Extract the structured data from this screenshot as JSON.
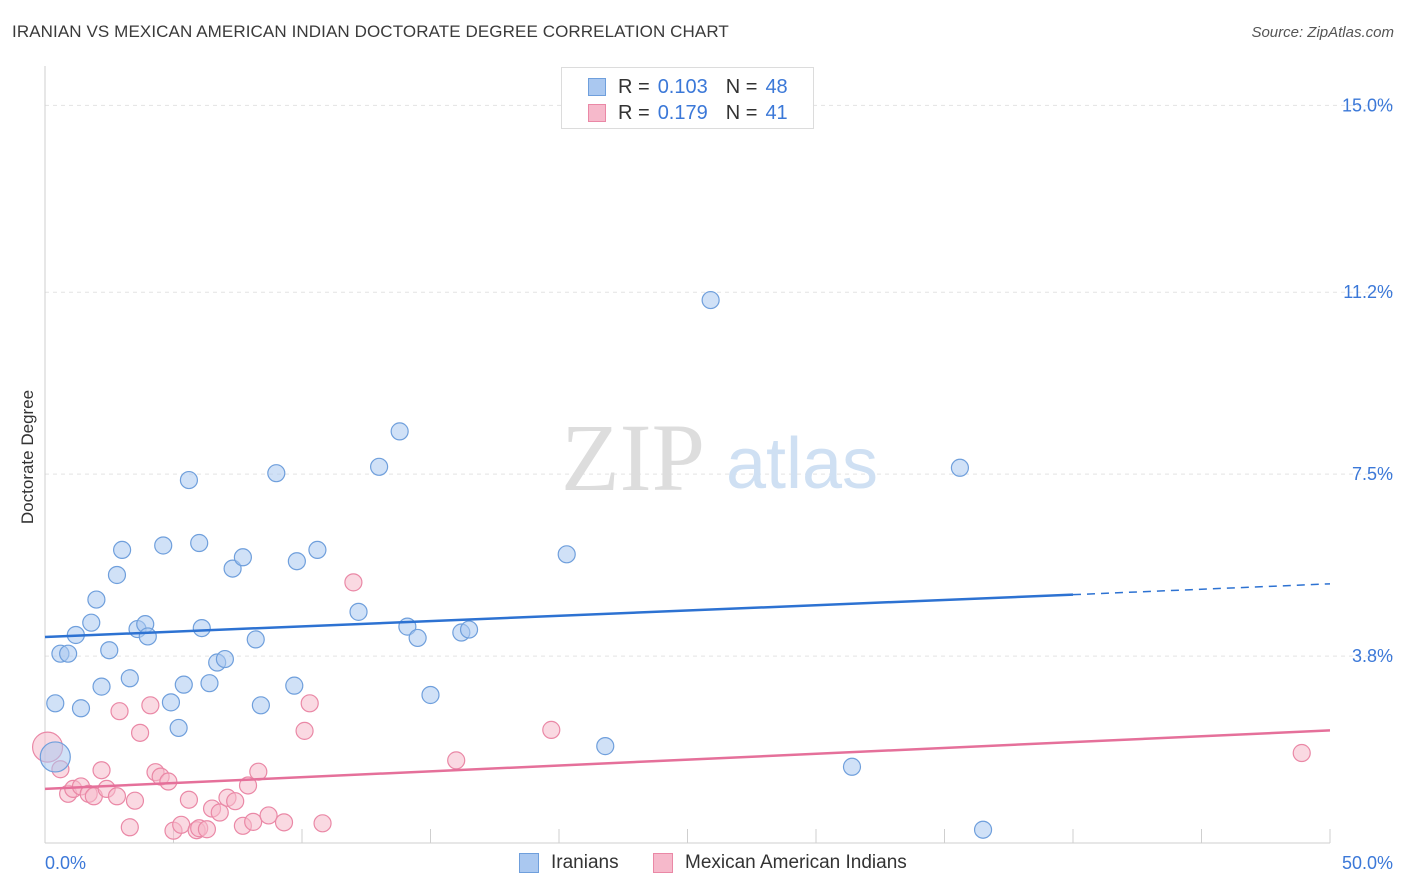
{
  "header": {
    "title": "IRANIAN VS MEXICAN AMERICAN INDIAN DOCTORATE DEGREE CORRELATION CHART",
    "source": "Source: ZipAtlas.com"
  },
  "watermark": {
    "zip": "ZIP",
    "atlas": "atlas"
  },
  "legend_top": [
    {
      "r_label": "R =",
      "r_value": "0.103",
      "n_label": "N =",
      "n_value": "48"
    },
    {
      "r_label": "R =",
      "r_value": "0.179",
      "n_label": "N =",
      "n_value": "41"
    }
  ],
  "legend_bottom": [
    {
      "label": "Iranians"
    },
    {
      "label": "Mexican American Indians"
    }
  ],
  "colors": {
    "iranian_fill": "#aac8f0",
    "iranian_stroke": "#6f9fdc",
    "iranian_line": "#2d72d2",
    "mexican_fill": "#f6b9cb",
    "mexican_stroke": "#ea88a6",
    "mexican_line": "#e5709a",
    "tick_text": "#3b78d8",
    "grid": "#e3e3e3"
  },
  "chart_data": {
    "type": "scatter",
    "title": "IRANIAN VS MEXICAN AMERICAN INDIAN DOCTORATE DEGREE CORRELATION CHART",
    "xlabel": "",
    "ylabel": "Doctorate Degree",
    "xlim": [
      0,
      50
    ],
    "ylim": [
      0,
      15.8
    ],
    "x_tick_labels": [
      "0.0%",
      "50.0%"
    ],
    "y_ticks": [
      3.8,
      7.5,
      11.2,
      15.0
    ],
    "y_tick_labels": [
      "3.8%",
      "7.5%",
      "11.2%",
      "15.0%"
    ],
    "grid": true,
    "legend_position": "top-center",
    "series": [
      {
        "name": "Iranians",
        "R": 0.103,
        "N": 48,
        "trend": {
          "x": [
            0,
            40,
            50
          ],
          "y": [
            4.19,
            5.05,
            5.27
          ],
          "solid_until": 40
        },
        "points": [
          {
            "x": 0.4,
            "y": 1.75,
            "big": true
          },
          {
            "x": 0.4,
            "y": 2.84
          },
          {
            "x": 1.4,
            "y": 2.74
          },
          {
            "x": 0.6,
            "y": 3.85
          },
          {
            "x": 0.9,
            "y": 3.85
          },
          {
            "x": 1.2,
            "y": 4.23
          },
          {
            "x": 1.8,
            "y": 4.48
          },
          {
            "x": 2.0,
            "y": 4.95
          },
          {
            "x": 2.2,
            "y": 3.18
          },
          {
            "x": 2.5,
            "y": 3.92
          },
          {
            "x": 2.8,
            "y": 5.45
          },
          {
            "x": 3.0,
            "y": 5.96
          },
          {
            "x": 3.3,
            "y": 3.35
          },
          {
            "x": 3.6,
            "y": 4.35
          },
          {
            "x": 3.9,
            "y": 4.45
          },
          {
            "x": 4.0,
            "y": 4.2
          },
          {
            "x": 4.6,
            "y": 6.05
          },
          {
            "x": 4.9,
            "y": 2.86
          },
          {
            "x": 5.2,
            "y": 2.34
          },
          {
            "x": 5.4,
            "y": 3.22
          },
          {
            "x": 5.6,
            "y": 7.38
          },
          {
            "x": 6.1,
            "y": 4.37
          },
          {
            "x": 6.4,
            "y": 3.25
          },
          {
            "x": 6.7,
            "y": 3.67
          },
          {
            "x": 7.0,
            "y": 3.74
          },
          {
            "x": 7.3,
            "y": 5.58
          },
          {
            "x": 7.7,
            "y": 5.81
          },
          {
            "x": 8.2,
            "y": 4.14
          },
          {
            "x": 8.4,
            "y": 2.8
          },
          {
            "x": 9.0,
            "y": 7.52
          },
          {
            "x": 9.7,
            "y": 3.2
          },
          {
            "x": 9.8,
            "y": 5.73
          },
          {
            "x": 10.6,
            "y": 5.96
          },
          {
            "x": 12.2,
            "y": 4.7
          },
          {
            "x": 13.0,
            "y": 7.65
          },
          {
            "x": 13.8,
            "y": 8.37
          },
          {
            "x": 14.1,
            "y": 4.4
          },
          {
            "x": 14.5,
            "y": 4.17
          },
          {
            "x": 15.0,
            "y": 3.01
          },
          {
            "x": 16.2,
            "y": 4.28
          },
          {
            "x": 16.5,
            "y": 4.34
          },
          {
            "x": 6.0,
            "y": 6.1
          },
          {
            "x": 20.3,
            "y": 5.87
          },
          {
            "x": 21.8,
            "y": 1.97
          },
          {
            "x": 25.9,
            "y": 11.04
          },
          {
            "x": 31.4,
            "y": 1.55
          },
          {
            "x": 35.6,
            "y": 7.63
          },
          {
            "x": 36.5,
            "y": 0.27
          }
        ]
      },
      {
        "name": "Mexican American Indians",
        "R": 0.179,
        "N": 41,
        "trend": {
          "x": [
            0,
            50
          ],
          "y": [
            1.1,
            2.29
          ]
        },
        "points": [
          {
            "x": 0.1,
            "y": 1.95,
            "big": true
          },
          {
            "x": 0.6,
            "y": 1.5
          },
          {
            "x": 0.9,
            "y": 1.0
          },
          {
            "x": 1.1,
            "y": 1.1
          },
          {
            "x": 1.4,
            "y": 1.15
          },
          {
            "x": 1.7,
            "y": 1.0
          },
          {
            "x": 1.9,
            "y": 0.95
          },
          {
            "x": 2.2,
            "y": 1.48
          },
          {
            "x": 2.4,
            "y": 1.1
          },
          {
            "x": 2.8,
            "y": 0.95
          },
          {
            "x": 2.9,
            "y": 2.68
          },
          {
            "x": 3.3,
            "y": 0.32
          },
          {
            "x": 3.5,
            "y": 0.86
          },
          {
            "x": 3.7,
            "y": 2.24
          },
          {
            "x": 4.1,
            "y": 2.8
          },
          {
            "x": 4.3,
            "y": 1.44
          },
          {
            "x": 4.5,
            "y": 1.35
          },
          {
            "x": 4.8,
            "y": 1.25
          },
          {
            "x": 5.0,
            "y": 0.25
          },
          {
            "x": 5.3,
            "y": 0.37
          },
          {
            "x": 5.6,
            "y": 0.88
          },
          {
            "x": 5.9,
            "y": 0.26
          },
          {
            "x": 6.0,
            "y": 0.3
          },
          {
            "x": 6.3,
            "y": 0.28
          },
          {
            "x": 6.5,
            "y": 0.7
          },
          {
            "x": 6.8,
            "y": 0.62
          },
          {
            "x": 7.1,
            "y": 0.92
          },
          {
            "x": 7.4,
            "y": 0.85
          },
          {
            "x": 7.7,
            "y": 0.35
          },
          {
            "x": 7.9,
            "y": 1.17
          },
          {
            "x": 8.1,
            "y": 0.43
          },
          {
            "x": 8.3,
            "y": 1.45
          },
          {
            "x": 8.7,
            "y": 0.56
          },
          {
            "x": 9.3,
            "y": 0.42
          },
          {
            "x": 10.1,
            "y": 2.28
          },
          {
            "x": 10.3,
            "y": 2.84
          },
          {
            "x": 10.8,
            "y": 0.4
          },
          {
            "x": 12.0,
            "y": 5.3
          },
          {
            "x": 16.0,
            "y": 1.68
          },
          {
            "x": 19.7,
            "y": 2.3
          },
          {
            "x": 48.9,
            "y": 1.83
          }
        ]
      }
    ]
  }
}
